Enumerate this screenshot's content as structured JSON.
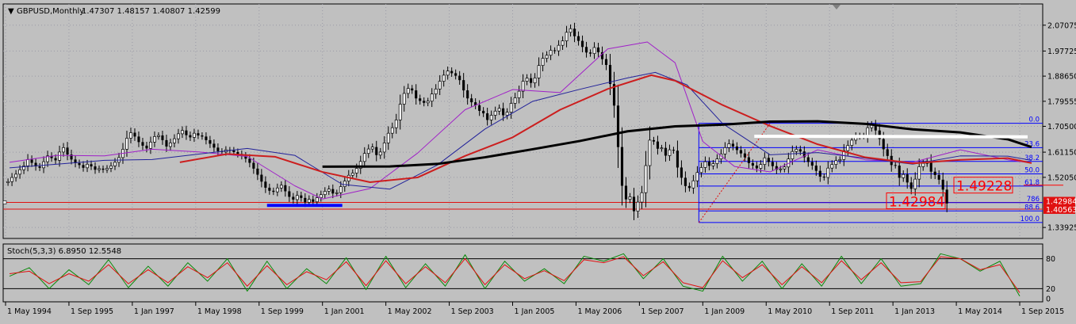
{
  "header": {
    "symbol_label": "GBPUSD,Monthly",
    "ohlc_label": "1.47307 1.48157 1.40807 1.42599"
  },
  "colors": {
    "background": "#c0c0c0",
    "frame": "#000000",
    "grid": "#9a9aa6",
    "candle_body": "#000000",
    "fib_line": "#0000ff",
    "ma_black": "#000000",
    "ma_red": "#cc1e1e",
    "ma_blue": "#22229a",
    "ma_purple": "#a020c8",
    "stoch_main": "#0a8a0a",
    "stoch_signal": "#e01010",
    "price_line": "#e01010",
    "zone_marker": "#0000ff",
    "band_white": "#ffffff",
    "label_red": "#ff0000"
  },
  "chart_data": [
    {
      "type": "candlestick",
      "title": "GBPUSD,Monthly",
      "x_ticks": [
        "1 May 1994",
        "1 Sep 1995",
        "1 Jan 1997",
        "1 May 1998",
        "1 Sep 1999",
        "1 Jan 2001",
        "1 May 2002",
        "1 Sep 2003",
        "1 Jan 2005",
        "1 May 2006",
        "1 Sep 2007",
        "1 Jan 2009",
        "1 May 2010",
        "1 Sep 2011",
        "1 Jan 2013",
        "1 May 2014",
        "1 Sep 2015"
      ],
      "y_ticks": [
        "2.07075",
        "1.97725",
        "1.88650",
        "1.79555",
        "1.70500",
        "1.61150",
        "1.52050",
        "1.42984",
        "1.40563",
        "1.33925"
      ],
      "ylim": [
        1.2995,
        2.1475
      ],
      "highlighted_prices": [
        {
          "label": "1.42984",
          "value": 1.42984
        },
        {
          "label": "1.40563",
          "value": 1.40563
        }
      ],
      "annotations": [
        "1.49228",
        "1.42984"
      ],
      "fibonacci_levels": [
        {
          "label": "0.0",
          "value": 1.716
        },
        {
          "label": "23.6",
          "value": 1.628
        },
        {
          "label": "38.2",
          "value": 1.578
        },
        {
          "label": "50.0",
          "value": 1.533
        },
        {
          "label": "61.8",
          "value": 1.489
        },
        {
          "label": "786",
          "value": 1.429
        },
        {
          "label": "88.6",
          "value": 1.399
        },
        {
          "label": "100.0",
          "value": 1.357
        }
      ],
      "moving_average_black": {
        "dates": [
          "2001-01",
          "2002-06",
          "2003-06",
          "2004-06",
          "2005-06",
          "2006-06",
          "2007-06",
          "2008-06",
          "2009-06",
          "2010-06",
          "2011-06",
          "2012-06",
          "2013-06",
          "2014-06",
          "2015-06",
          "2015-12"
        ],
        "values": [
          1.559,
          1.56,
          1.569,
          1.593,
          1.622,
          1.652,
          1.687,
          1.705,
          1.711,
          1.722,
          1.723,
          1.714,
          1.694,
          1.683,
          1.658,
          1.63
        ]
      },
      "moving_average_red": {
        "dates": [
          "1998-01",
          "1999-01",
          "2000-01",
          "2001-01",
          "2002-01",
          "2003-01",
          "2004-01",
          "2005-01",
          "2006-01",
          "2007-01",
          "2007-12",
          "2008-06",
          "2009-06",
          "2010-06",
          "2011-06",
          "2012-06",
          "2013-06",
          "2014-06",
          "2015-06",
          "2015-12"
        ],
        "values": [
          1.575,
          1.605,
          1.595,
          1.54,
          1.503,
          1.52,
          1.598,
          1.665,
          1.765,
          1.84,
          1.89,
          1.87,
          1.782,
          1.706,
          1.64,
          1.593,
          1.571,
          1.584,
          1.59,
          1.572
        ]
      },
      "moving_average_blue": {
        "dates": [
          "1994-06",
          "1995-06",
          "1996-06",
          "1997-06",
          "1998-06",
          "1999-06",
          "2000-06",
          "2001-06",
          "2002-06",
          "2003-06",
          "2004-06",
          "2005-06",
          "2006-06",
          "2007-06",
          "2008-01",
          "2008-09",
          "2009-06",
          "2010-06",
          "2011-06",
          "2012-06",
          "2013-06",
          "2014-06",
          "2015-06",
          "2015-12"
        ],
        "values": [
          1.555,
          1.568,
          1.582,
          1.585,
          1.605,
          1.625,
          1.6,
          1.495,
          1.478,
          1.565,
          1.695,
          1.795,
          1.839,
          1.88,
          1.9,
          1.855,
          1.715,
          1.602,
          1.61,
          1.59,
          1.568,
          1.598,
          1.597,
          1.582
        ]
      },
      "moving_average_purple": {
        "dates": [
          "1994-06",
          "1995-06",
          "1996-06",
          "1997-06",
          "1998-06",
          "1999-06",
          "2000-06",
          "2001-01",
          "2002-01",
          "2003-01",
          "2004-01",
          "2005-01",
          "2006-01",
          "2007-01",
          "2007-11",
          "2008-06",
          "2009-01",
          "2009-09",
          "2010-06",
          "2011-06",
          "2012-06",
          "2013-06",
          "2014-06",
          "2015-06",
          "2015-12"
        ],
        "values": [
          1.575,
          1.6,
          1.598,
          1.622,
          1.612,
          1.596,
          1.49,
          1.442,
          1.48,
          1.608,
          1.765,
          1.838,
          1.827,
          1.985,
          2.01,
          1.935,
          1.65,
          1.56,
          1.54,
          1.62,
          1.584,
          1.575,
          1.62,
          1.584,
          1.572
        ]
      },
      "candles": {
        "start": "1994-05",
        "closes": [
          1.505,
          1.52,
          1.532,
          1.548,
          1.562,
          1.585,
          1.573,
          1.56,
          1.555,
          1.577,
          1.598,
          1.59,
          1.582,
          1.612,
          1.628,
          1.603,
          1.585,
          1.572,
          1.565,
          1.555,
          1.568,
          1.56,
          1.548,
          1.552,
          1.548,
          1.553,
          1.562,
          1.575,
          1.592,
          1.622,
          1.662,
          1.682,
          1.668,
          1.648,
          1.635,
          1.625,
          1.648,
          1.668,
          1.672,
          1.655,
          1.632,
          1.645,
          1.66,
          1.678,
          1.69,
          1.673,
          1.665,
          1.68,
          1.672,
          1.668,
          1.655,
          1.642,
          1.628,
          1.615,
          1.612,
          1.62,
          1.618,
          1.612,
          1.605,
          1.598,
          1.588,
          1.573,
          1.552,
          1.53,
          1.505,
          1.483,
          1.472,
          1.468,
          1.482,
          1.492,
          1.47,
          1.45,
          1.44,
          1.455,
          1.446,
          1.43,
          1.441,
          1.432,
          1.447,
          1.458,
          1.47,
          1.478,
          1.462,
          1.465,
          1.487,
          1.507,
          1.528,
          1.536,
          1.553,
          1.578,
          1.607,
          1.623,
          1.63,
          1.601,
          1.612,
          1.645,
          1.68,
          1.7,
          1.728,
          1.785,
          1.824,
          1.842,
          1.835,
          1.806,
          1.797,
          1.79,
          1.796,
          1.822,
          1.84,
          1.868,
          1.89,
          1.905,
          1.897,
          1.888,
          1.872,
          1.835,
          1.806,
          1.792,
          1.781,
          1.761,
          1.752,
          1.728,
          1.745,
          1.76,
          1.77,
          1.745,
          1.756,
          1.788,
          1.808,
          1.832,
          1.868,
          1.879,
          1.862,
          1.88,
          1.925,
          1.951,
          1.962,
          1.98,
          1.978,
          1.998,
          2.014,
          2.045,
          2.058,
          2.031,
          2.014,
          1.992,
          1.972,
          1.968,
          1.99,
          1.973,
          1.948,
          1.927,
          1.858,
          1.78,
          1.63,
          1.49,
          1.441,
          1.45,
          1.398,
          1.431,
          1.465,
          1.563,
          1.655,
          1.65,
          1.624,
          1.627,
          1.599,
          1.62,
          1.617,
          1.556,
          1.519,
          1.489,
          1.482,
          1.508,
          1.538,
          1.556,
          1.577,
          1.562,
          1.57,
          1.587,
          1.605,
          1.628,
          1.642,
          1.632,
          1.619,
          1.607,
          1.593,
          1.572,
          1.563,
          1.553,
          1.567,
          1.591,
          1.576,
          1.561,
          1.548,
          1.551,
          1.558,
          1.587,
          1.614,
          1.622,
          1.614,
          1.593,
          1.576,
          1.563,
          1.544,
          1.523,
          1.52,
          1.554,
          1.567,
          1.581,
          1.585,
          1.617,
          1.636,
          1.655,
          1.668,
          1.671,
          1.669,
          1.7,
          1.71,
          1.69,
          1.659,
          1.622,
          1.598,
          1.565,
          1.563,
          1.519,
          1.531,
          1.502,
          1.479,
          1.514,
          1.559,
          1.571,
          1.578,
          1.541,
          1.529,
          1.512,
          1.476,
          1.426
        ]
      }
    },
    {
      "type": "line",
      "title": "Stoch(5,3,3) 6.8950 12.5548",
      "y_ticks": [
        "80",
        "20",
        "0"
      ],
      "ylim": [
        0,
        100
      ],
      "levels": [
        80,
        20
      ],
      "main_line": {
        "name": "Stoch main",
        "dates": [
          "1994-06",
          "1994-11",
          "1995-04",
          "1995-09",
          "1996-02",
          "1996-07",
          "1996-12",
          "1997-05",
          "1997-10",
          "1998-03",
          "1998-08",
          "1999-01",
          "1999-06",
          "1999-11",
          "2000-04",
          "2000-09",
          "2001-02",
          "2001-07",
          "2001-12",
          "2002-05",
          "2002-10",
          "2003-03",
          "2003-08",
          "2004-01",
          "2004-06",
          "2004-11",
          "2005-04",
          "2005-09",
          "2006-02",
          "2006-07",
          "2006-12",
          "2007-05",
          "2007-10",
          "2008-03",
          "2008-08",
          "2009-01",
          "2009-06",
          "2009-11",
          "2010-04",
          "2010-09",
          "2011-02",
          "2011-07",
          "2011-12",
          "2012-05",
          "2012-10",
          "2013-03",
          "2013-08",
          "2014-01",
          "2014-06",
          "2014-11",
          "2015-04",
          "2015-09"
        ],
        "values": [
          45,
          62,
          20,
          58,
          28,
          78,
          22,
          65,
          25,
          72,
          35,
          80,
          15,
          75,
          20,
          60,
          30,
          82,
          18,
          85,
          22,
          70,
          25,
          88,
          20,
          75,
          35,
          60,
          30,
          85,
          75,
          90,
          40,
          80,
          25,
          15,
          85,
          35,
          75,
          20,
          70,
          25,
          85,
          30,
          80,
          25,
          30,
          90,
          80,
          55,
          75,
          5
        ]
      },
      "signal_line": {
        "name": "Stoch signal",
        "dates": [
          "1994-06",
          "1994-11",
          "1995-04",
          "1995-09",
          "1996-02",
          "1996-07",
          "1996-12",
          "1997-05",
          "1997-10",
          "1998-03",
          "1998-08",
          "1999-01",
          "1999-06",
          "1999-11",
          "2000-04",
          "2000-09",
          "2001-02",
          "2001-07",
          "2001-12",
          "2002-05",
          "2002-10",
          "2003-03",
          "2003-08",
          "2004-01",
          "2004-06",
          "2004-11",
          "2005-04",
          "2005-09",
          "2006-02",
          "2006-07",
          "2006-12",
          "2007-05",
          "2007-10",
          "2008-03",
          "2008-08",
          "2009-01",
          "2009-06",
          "2009-11",
          "2010-04",
          "2010-09",
          "2011-02",
          "2011-07",
          "2011-12",
          "2012-05",
          "2012-10",
          "2013-03",
          "2013-08",
          "2014-01",
          "2014-06",
          "2014-11",
          "2015-04",
          "2015-09"
        ],
        "values": [
          50,
          55,
          30,
          50,
          35,
          68,
          30,
          58,
          32,
          64,
          42,
          72,
          25,
          66,
          28,
          54,
          38,
          74,
          26,
          76,
          30,
          64,
          32,
          80,
          28,
          68,
          40,
          56,
          36,
          78,
          72,
          84,
          46,
          74,
          32,
          22,
          76,
          42,
          68,
          28,
          64,
          32,
          76,
          38,
          72,
          32,
          34,
          84,
          80,
          58,
          68,
          12
        ]
      }
    }
  ]
}
